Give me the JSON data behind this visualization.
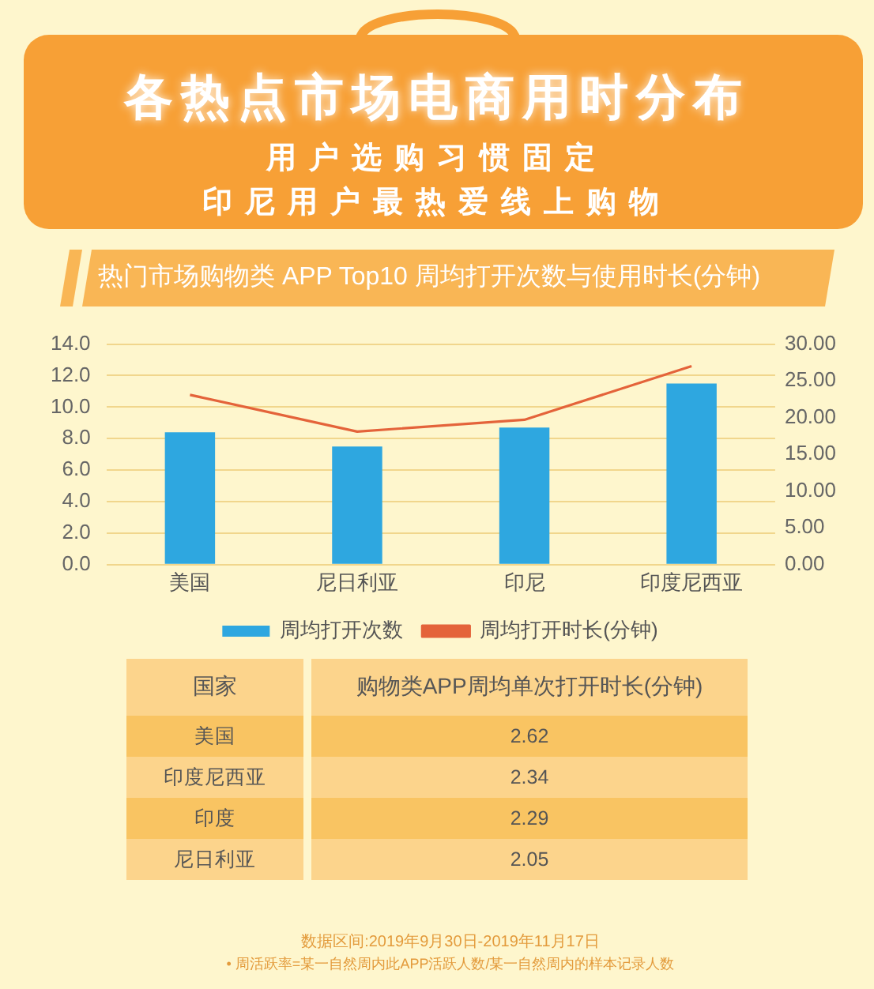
{
  "chart_data": [
    {
      "type": "other",
      "title": "各热点市场电商用时分布",
      "subtitle": "用户选购习惯固定",
      "annotations": [
        "印尼用户最热爱线上购物"
      ]
    },
    {
      "type": "bar",
      "title": "热门市场购物类 APP Top10 周均打开次数与使用时长(分钟)",
      "categories": [
        "美国",
        "尼日利亚",
        "印尼",
        "印度尼西亚"
      ],
      "series": [
        {
          "name": "周均打开次数",
          "type": "bar",
          "color": "#2ea7e0",
          "values": [
            8.4,
            7.5,
            8.7,
            11.5
          ]
        },
        {
          "name": "周均打开时长(分钟)",
          "type": "line",
          "axis": "y2",
          "color": "#e4633a",
          "values": [
            23.1,
            18.1,
            19.7,
            27.0
          ]
        }
      ],
      "ylim": [
        0,
        14
      ],
      "yticks": [
        {
          "value": 0,
          "label": "0.0"
        },
        {
          "value": 2,
          "label": "2.0"
        },
        {
          "value": 4,
          "label": "4.0"
        },
        {
          "value": 6,
          "label": "6.0"
        },
        {
          "value": 8,
          "label": "8.0"
        },
        {
          "value": 10,
          "label": "10.0"
        },
        {
          "value": 12,
          "label": "12.0"
        },
        {
          "value": 14,
          "label": "14.0"
        }
      ],
      "y2lim": [
        0,
        30
      ],
      "y2ticks": [
        {
          "value": 0,
          "label": "0.00"
        },
        {
          "value": 5,
          "label": "5.00"
        },
        {
          "value": 10,
          "label": "10.00"
        },
        {
          "value": 15,
          "label": "15.00"
        },
        {
          "value": 20,
          "label": "20.00"
        },
        {
          "value": 25,
          "label": "25.00"
        },
        {
          "value": 30,
          "label": "30.00"
        }
      ],
      "grid": "y",
      "legend": "bottom",
      "marker": "none"
    },
    {
      "type": "other",
      "xlabel": "国家",
      "ylabel": "购物类APP周均单次打开时长(分钟)",
      "categories": [
        "美国",
        "印度尼西亚",
        "印度",
        "尼日利亚"
      ],
      "values": [
        2.62,
        2.34,
        2.29,
        2.05
      ],
      "data_labels": true,
      "annotations": [
        "数据区间:2019年9月30日-2019年11月17日",
        "• 周活跃率=某一自然周内此APP活跃人数/某一自然周内的样本记录人数"
      ]
    }
  ]
}
